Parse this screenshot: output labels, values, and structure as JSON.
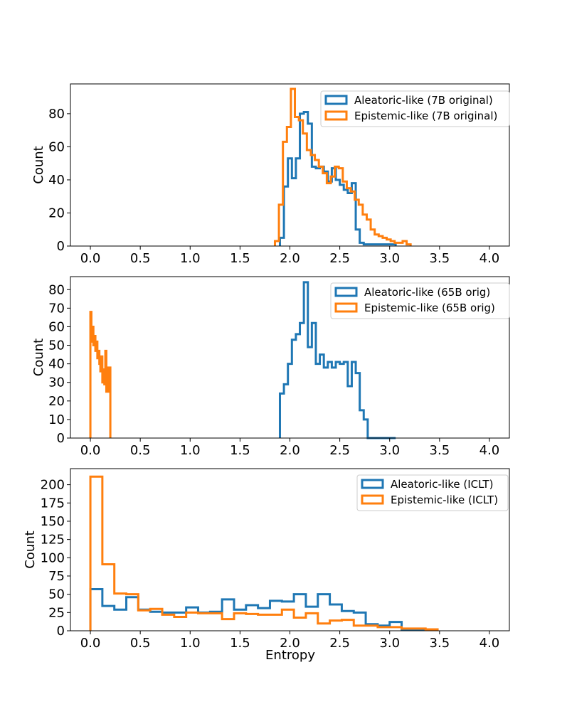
{
  "figure": {
    "xlabel": "Entropy"
  },
  "colors": {
    "aleatoric": "#1f77b4",
    "epistemic": "#ff7f0e",
    "axes": "#000000",
    "background": "#ffffff"
  },
  "chart_data": [
    {
      "type": "histogram",
      "title": "",
      "xlabel": "",
      "ylabel": "Count",
      "xlim": [
        -0.2,
        4.2
      ],
      "ylim": [
        0,
        98
      ],
      "xticks": [
        "0.0",
        "0.5",
        "1.0",
        "1.5",
        "2.0",
        "2.5",
        "3.0",
        "3.5",
        "4.0"
      ],
      "xtick_values": [
        0,
        0.5,
        1.0,
        1.5,
        2.0,
        2.5,
        3.0,
        3.5,
        4.0
      ],
      "yticks": [
        "0",
        "20",
        "40",
        "60",
        "80"
      ],
      "ytick_values": [
        0,
        20,
        40,
        60,
        80
      ],
      "legend_position": "top-right",
      "series": [
        {
          "name": "Aleatoric-like (7B original)",
          "color_key": "aleatoric",
          "edges": [
            1.9,
            1.94,
            1.98,
            2.02,
            2.06,
            2.1,
            2.14,
            2.18,
            2.22,
            2.26,
            2.3,
            2.34,
            2.38,
            2.42,
            2.46,
            2.5,
            2.54,
            2.58,
            2.62,
            2.66,
            2.7,
            2.74,
            2.78,
            2.82,
            2.86,
            2.9,
            2.94,
            2.98,
            3.02,
            3.06
          ],
          "counts": [
            5,
            36,
            53,
            41,
            53,
            80,
            81,
            74,
            48,
            47,
            48,
            45,
            39,
            47,
            40,
            37,
            34,
            32,
            38,
            10,
            2,
            1,
            1,
            1,
            1,
            1,
            1,
            1,
            1
          ]
        },
        {
          "name": "Epistemic-like (7B original)",
          "color_key": "epistemic",
          "edges": [
            1.85,
            1.89,
            1.93,
            1.97,
            2.01,
            2.05,
            2.09,
            2.13,
            2.17,
            2.21,
            2.25,
            2.29,
            2.33,
            2.37,
            2.41,
            2.45,
            2.49,
            2.53,
            2.57,
            2.61,
            2.65,
            2.69,
            2.73,
            2.77,
            2.81,
            2.85,
            2.89,
            2.93,
            2.97,
            3.01,
            3.05,
            3.09,
            3.13,
            3.17,
            3.21
          ],
          "counts": [
            3,
            25,
            63,
            72,
            95,
            78,
            76,
            68,
            58,
            55,
            52,
            48,
            44,
            38,
            42,
            48,
            47,
            39,
            35,
            33,
            28,
            25,
            19,
            16,
            10,
            7,
            6,
            5,
            4,
            3,
            2,
            2,
            3,
            1
          ]
        }
      ]
    },
    {
      "type": "histogram",
      "title": "",
      "xlabel": "",
      "ylabel": "Count",
      "xlim": [
        -0.2,
        4.2
      ],
      "ylim": [
        0,
        87
      ],
      "xticks": [
        "0.0",
        "0.5",
        "1.0",
        "1.5",
        "2.0",
        "2.5",
        "3.0",
        "3.5",
        "4.0"
      ],
      "xtick_values": [
        0,
        0.5,
        1.0,
        1.5,
        2.0,
        2.5,
        3.0,
        3.5,
        4.0
      ],
      "yticks": [
        "0",
        "10",
        "20",
        "30",
        "40",
        "50",
        "60",
        "70",
        "80"
      ],
      "ytick_values": [
        0,
        10,
        20,
        30,
        40,
        50,
        60,
        70,
        80
      ],
      "legend_position": "top-right",
      "series": [
        {
          "name": "Aleatoric-like (65B orig)",
          "color_key": "aleatoric",
          "edges": [
            1.9,
            1.94,
            1.98,
            2.02,
            2.06,
            2.1,
            2.14,
            2.18,
            2.22,
            2.26,
            2.3,
            2.34,
            2.38,
            2.42,
            2.46,
            2.5,
            2.54,
            2.58,
            2.62,
            2.66,
            2.7,
            2.74,
            2.78,
            2.82,
            2.86,
            2.9,
            2.94,
            2.98,
            3.02,
            3.06
          ],
          "counts": [
            24,
            29,
            40,
            53,
            56,
            62,
            84,
            49,
            62,
            40,
            45,
            38,
            41,
            38,
            41,
            40,
            41,
            28,
            41,
            35,
            15,
            10,
            0,
            0,
            0,
            0,
            0,
            0,
            0
          ]
        },
        {
          "name": "Epistemic-like (65B orig)",
          "color_key": "epistemic",
          "edges": [
            0.0,
            0.01,
            0.02,
            0.03,
            0.04,
            0.05,
            0.06,
            0.07,
            0.08,
            0.09,
            0.1,
            0.11,
            0.12,
            0.13,
            0.14,
            0.15,
            0.16,
            0.17,
            0.18,
            0.19,
            0.2
          ],
          "counts": [
            68,
            52,
            60,
            50,
            55,
            47,
            52,
            43,
            47,
            40,
            36,
            44,
            30,
            37,
            29,
            47,
            25,
            38,
            25,
            38
          ]
        }
      ]
    },
    {
      "type": "histogram",
      "title": "",
      "xlabel": "Entropy",
      "ylabel": "Count",
      "xlim": [
        -0.2,
        4.2
      ],
      "ylim": [
        0,
        222
      ],
      "xticks": [
        "0.0",
        "0.5",
        "1.0",
        "1.5",
        "2.0",
        "2.5",
        "3.0",
        "3.5",
        "4.0"
      ],
      "xtick_values": [
        0,
        0.5,
        1.0,
        1.5,
        2.0,
        2.5,
        3.0,
        3.5,
        4.0
      ],
      "yticks": [
        "0",
        "25",
        "50",
        "75",
        "100",
        "125",
        "150",
        "175",
        "200"
      ],
      "ytick_values": [
        0,
        25,
        50,
        75,
        100,
        125,
        150,
        175,
        200
      ],
      "legend_position": "top-right",
      "series": [
        {
          "name": "Aleatoric-like (ICLT)",
          "color_key": "aleatoric",
          "edges": [
            0.0,
            0.12,
            0.24,
            0.36,
            0.48,
            0.6,
            0.72,
            0.84,
            0.96,
            1.08,
            1.2,
            1.32,
            1.44,
            1.56,
            1.68,
            1.8,
            1.92,
            2.04,
            2.16,
            2.28,
            2.4,
            2.52,
            2.64,
            2.76,
            2.88,
            3.0,
            3.12,
            3.24,
            3.36,
            3.48
          ],
          "counts": [
            57,
            34,
            29,
            46,
            29,
            26,
            25,
            25,
            32,
            25,
            26,
            43,
            29,
            35,
            31,
            41,
            40,
            50,
            33,
            50,
            36,
            27,
            25,
            9,
            7,
            12,
            2,
            2,
            2
          ]
        },
        {
          "name": "Epistemic-like (ICLT)",
          "color_key": "epistemic",
          "edges": [
            0.0,
            0.12,
            0.24,
            0.36,
            0.48,
            0.6,
            0.72,
            0.84,
            0.96,
            1.08,
            1.2,
            1.32,
            1.44,
            1.56,
            1.68,
            1.8,
            1.92,
            2.04,
            2.16,
            2.28,
            2.4,
            2.52,
            2.64,
            2.76,
            2.88,
            3.0,
            3.12,
            3.24,
            3.36,
            3.48
          ],
          "counts": [
            211,
            91,
            51,
            50,
            28,
            30,
            22,
            19,
            25,
            24,
            24,
            16,
            24,
            23,
            22,
            22,
            29,
            18,
            24,
            10,
            14,
            15,
            7,
            7,
            5,
            5,
            3,
            3,
            2
          ]
        }
      ]
    }
  ]
}
